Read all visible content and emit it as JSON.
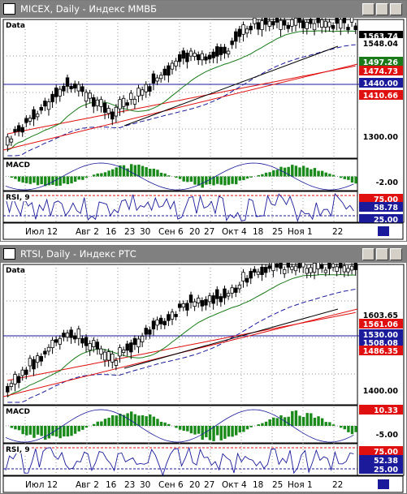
{
  "windows": [
    {
      "title": "MICEX, Daily - Индекс ММВБ",
      "panes": {
        "price": {
          "label": "Data",
          "tags": [
            {
              "text": "1563.74",
              "bg": "#000000",
              "fg": "#ffffff"
            },
            {
              "text": "1548.04",
              "bg": "#ffffff",
              "fg": "#000000"
            },
            {
              "text": "1497.26",
              "bg": "#1a7a1a",
              "fg": "#ffffff"
            },
            {
              "text": "1474.73",
              "bg": "#e01010",
              "fg": "#ffffff"
            },
            {
              "text": "1440.00",
              "bg": "#1a1a9a",
              "fg": "#ffffff"
            },
            {
              "text": "1410.66",
              "bg": "#e01010",
              "fg": "#ffffff"
            },
            {
              "text": "1300.00",
              "bg": "#ffffff",
              "fg": "#000000"
            }
          ]
        },
        "macd": {
          "label": "MACD",
          "tags": [
            {
              "text": "-2.00",
              "bg": "#ffffff",
              "fg": "#000000"
            }
          ]
        },
        "rsi": {
          "label": "RSI, 9",
          "tags": [
            {
              "text": "75.00",
              "bg": "#e01010",
              "fg": "#ffffff"
            },
            {
              "text": "58.78",
              "bg": "#1a1a9a",
              "fg": "#ffffff"
            },
            {
              "text": "25.00",
              "bg": "#1a1a9a",
              "fg": "#ffffff"
            }
          ]
        }
      },
      "dates": [
        "Июл 12",
        "Авг 2",
        "16",
        "23",
        "30",
        "Сен 6",
        "20",
        "27",
        "Окт 4",
        "18",
        "25",
        "Ноя 1",
        "22"
      ]
    },
    {
      "title": "RTSI, Daily - Индекс РТС",
      "panes": {
        "price": {
          "label": "Data",
          "tags": [
            {
              "text": "1603.65",
              "bg": "#ffffff",
              "fg": "#000000"
            },
            {
              "text": "1561.06",
              "bg": "#e01010",
              "fg": "#ffffff"
            },
            {
              "text": "1530.00",
              "bg": "#1a1a9a",
              "fg": "#ffffff"
            },
            {
              "text": "1508.08",
              "bg": "#1a1a9a",
              "fg": "#ffffff"
            },
            {
              "text": "1486.35",
              "bg": "#e01010",
              "fg": "#ffffff"
            },
            {
              "text": "1400.00",
              "bg": "#ffffff",
              "fg": "#000000"
            }
          ]
        },
        "macd": {
          "label": "MACD",
          "tags": [
            {
              "text": "10.33",
              "bg": "#e01010",
              "fg": "#ffffff"
            },
            {
              "text": "-5.00",
              "bg": "#ffffff",
              "fg": "#000000"
            }
          ]
        },
        "rsi": {
          "label": "RSI, 9",
          "tags": [
            {
              "text": "75.00",
              "bg": "#e01010",
              "fg": "#ffffff"
            },
            {
              "text": "52.38",
              "bg": "#1a1a9a",
              "fg": "#ffffff"
            },
            {
              "text": "25.00",
              "bg": "#1a1a9a",
              "fg": "#ffffff"
            }
          ]
        }
      },
      "dates": [
        "Июл 12",
        "Авг 2",
        "16",
        "23",
        "30",
        "Сен 6",
        "20",
        "27",
        "Окт 4",
        "18",
        "25",
        "Ноя 1",
        "22"
      ]
    }
  ],
  "colors": {
    "candle_up": "#ffffff",
    "candle_down": "#000000",
    "ma_green": "#1a7a1a",
    "ma_red": "#e01010",
    "ma_blue": "#1a1a9a",
    "trend": "#000000",
    "macd_hist": "#1a8a1a"
  }
}
